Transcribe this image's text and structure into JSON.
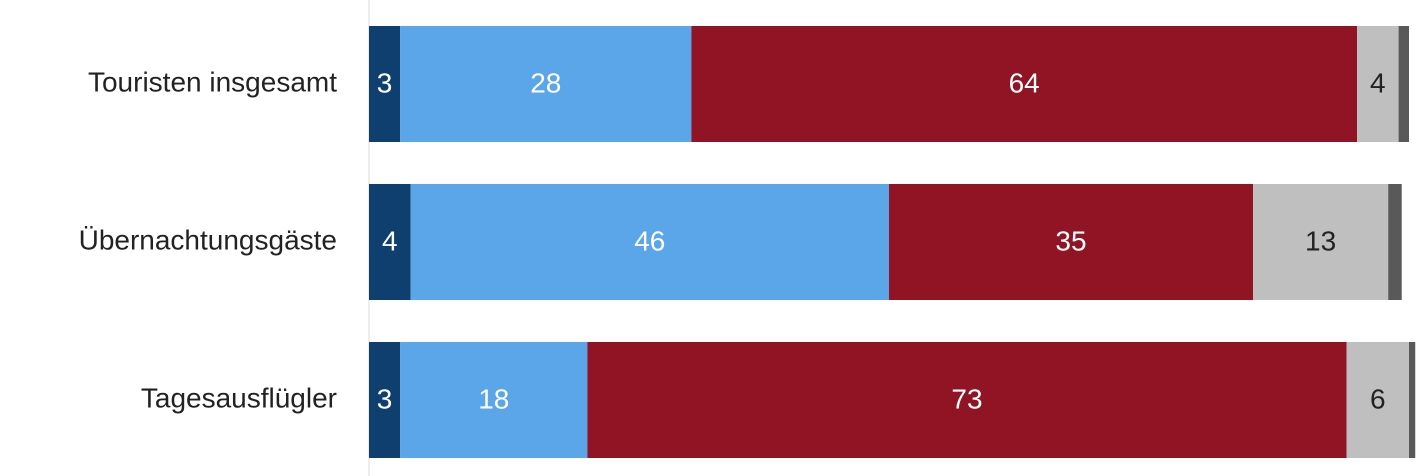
{
  "chart_data": {
    "type": "stacked-barh",
    "categories": [
      "Touristen insgesamt",
      "Übernachtungsgäste",
      "Tagesausflügler"
    ],
    "series": [
      {
        "color": "#0e3f6e",
        "label_color": "#ffffff",
        "values": [
          3,
          4,
          3
        ]
      },
      {
        "color": "#5aa6e8",
        "label_color": "#ffffff",
        "values": [
          28,
          46,
          18
        ]
      },
      {
        "color": "#901423",
        "label_color": "#ffffff",
        "values": [
          64,
          35,
          73
        ]
      },
      {
        "color": "#bfbfbf",
        "label_color": "#222222",
        "values": [
          4,
          13,
          6
        ]
      },
      {
        "color": "#595959",
        "values": [
          1,
          1.3,
          0.6
        ]
      }
    ],
    "xlim": [
      0,
      100
    ]
  }
}
